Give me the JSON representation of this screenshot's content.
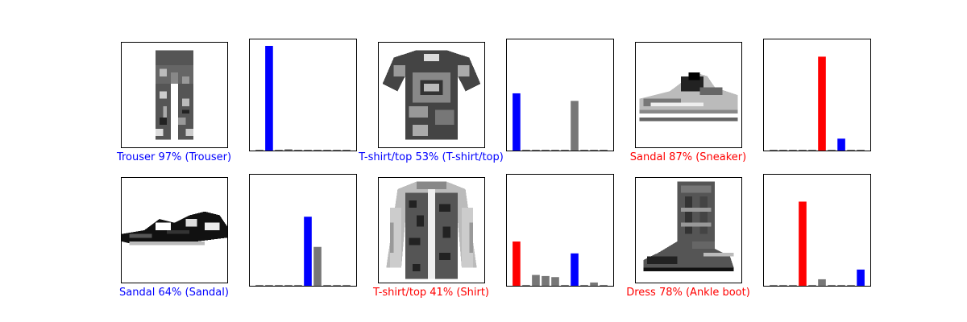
{
  "colors": {
    "correct": "#0000ff",
    "wrong": "#ff0000",
    "other": "#777777"
  },
  "panels": [
    {
      "caption": "Trouser 97% (Trouser)",
      "garment": "trouser",
      "status": "correct",
      "chart_data": {
        "type": "bar",
        "categories": [
          "0",
          "1",
          "2",
          "3",
          "4",
          "5",
          "6",
          "7",
          "8",
          "9"
        ],
        "values": [
          0.005,
          0.97,
          0.0,
          0.012,
          0.0,
          0.0,
          0.0,
          0.0,
          0.0,
          0.0
        ],
        "predicted": 1,
        "true_label": 1,
        "ylim": [
          0,
          1
        ]
      }
    },
    {
      "caption": "T-shirt/top 53% (T-shirt/top)",
      "garment": "tshirt",
      "status": "correct",
      "chart_data": {
        "type": "bar",
        "categories": [
          "0",
          "1",
          "2",
          "3",
          "4",
          "5",
          "6",
          "7",
          "8",
          "9"
        ],
        "values": [
          0.53,
          0.0,
          0.0,
          0.0,
          0.0,
          0.0,
          0.46,
          0.0,
          0.0,
          0.0
        ],
        "predicted": 0,
        "true_label": 0,
        "ylim": [
          0,
          1
        ]
      }
    },
    {
      "caption": "Sandal 87% (Sneaker)",
      "garment": "sneaker",
      "status": "wrong",
      "chart_data": {
        "type": "bar",
        "categories": [
          "0",
          "1",
          "2",
          "3",
          "4",
          "5",
          "6",
          "7",
          "8",
          "9"
        ],
        "values": [
          0.005,
          0.0,
          0.0,
          0.0,
          0.005,
          0.87,
          0.0,
          0.11,
          0.0,
          0.005
        ],
        "predicted": 5,
        "true_label": 7,
        "ylim": [
          0,
          1
        ]
      }
    },
    {
      "caption": "Sandal 64% (Sandal)",
      "garment": "sandal",
      "status": "correct",
      "chart_data": {
        "type": "bar",
        "categories": [
          "0",
          "1",
          "2",
          "3",
          "4",
          "5",
          "6",
          "7",
          "8",
          "9"
        ],
        "values": [
          0.0,
          0.0,
          0.0,
          0.0,
          0.0,
          0.64,
          0.36,
          0.0,
          0.0,
          0.0
        ],
        "predicted": 5,
        "true_label": 5,
        "ylim": [
          0,
          1
        ]
      }
    },
    {
      "caption": "T-shirt/top 41% (Shirt)",
      "garment": "shirt",
      "status": "wrong",
      "chart_data": {
        "type": "bar",
        "categories": [
          "0",
          "1",
          "2",
          "3",
          "4",
          "5",
          "6",
          "7",
          "8",
          "9"
        ],
        "values": [
          0.41,
          0.0,
          0.1,
          0.09,
          0.08,
          0.0,
          0.3,
          0.0,
          0.03,
          0.0
        ],
        "predicted": 0,
        "true_label": 6,
        "ylim": [
          0,
          1
        ]
      }
    },
    {
      "caption": "Dress 78% (Ankle boot)",
      "garment": "boot",
      "status": "wrong",
      "chart_data": {
        "type": "bar",
        "categories": [
          "0",
          "1",
          "2",
          "3",
          "4",
          "5",
          "6",
          "7",
          "8",
          "9"
        ],
        "values": [
          0.0,
          0.0,
          0.0,
          0.78,
          0.0,
          0.06,
          0.0,
          0.0,
          0.005,
          0.15
        ],
        "predicted": 3,
        "true_label": 9,
        "ylim": [
          0,
          1
        ]
      }
    }
  ]
}
